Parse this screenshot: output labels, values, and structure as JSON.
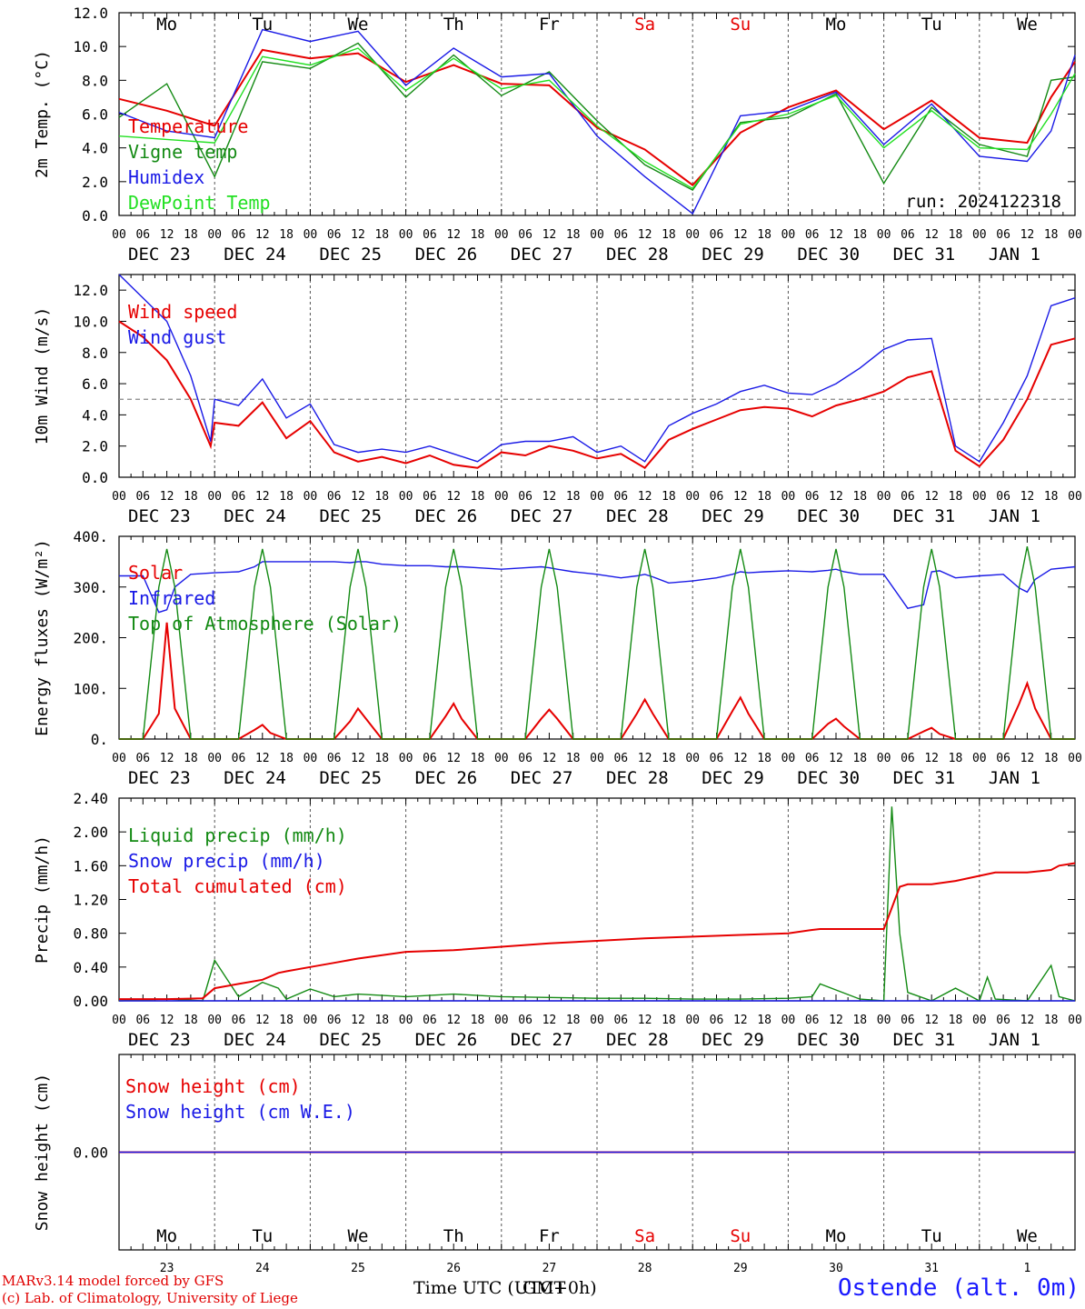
{
  "colors": {
    "red": "#e60000",
    "green": "#138a13",
    "blue": "#1a1ae6",
    "lightgreen": "#22e022",
    "grid": "#555555",
    "weekend": "#e60000"
  },
  "days": {
    "weekdays": [
      "Mo",
      "Tu",
      "We",
      "Th",
      "Fr",
      "Sa",
      "Su",
      "Mo",
      "Tu",
      "We"
    ],
    "weekend_index": [
      5,
      6
    ],
    "dates": [
      "DEC 23",
      "DEC 24",
      "DEC 25",
      "DEC 26",
      "DEC 27",
      "DEC 28",
      "DEC 29",
      "DEC 30",
      "DEC 31",
      "JAN  1"
    ],
    "day_numbers": [
      "23",
      "24",
      "25",
      "26",
      "27",
      "28",
      "29",
      "30",
      "31",
      "1"
    ],
    "hour_ticks": [
      "00",
      "06",
      "12",
      "18"
    ],
    "final_tick": "00"
  },
  "run_label": "run: 2024122318",
  "footer": {
    "credit_line1": "MARv3.14 model forced by GFS",
    "credit_line2": "(c) Lab. of Climatology, University of Liege",
    "xlabel": "Time UTC (UTC+0h)",
    "xlabel_overlay": "GMT",
    "station": "Ostende (alt. 0m)"
  },
  "chart_data": [
    {
      "type": "line",
      "ylabel": "2m Temp. (°C)",
      "ylim": [
        0,
        12
      ],
      "yticks": [
        "0.0",
        "2.0",
        "4.0",
        "6.0",
        "8.0",
        "10.0",
        "12.0"
      ],
      "yticks_values": [
        0,
        2,
        4,
        6,
        8,
        10,
        12
      ],
      "x_hours": [
        0,
        12,
        24,
        36,
        48,
        60,
        72,
        84,
        96,
        108,
        120,
        132,
        144,
        156,
        168,
        180,
        192,
        204,
        216,
        228,
        234,
        240
      ],
      "series": [
        {
          "name": "Temperature",
          "color": "red",
          "values": [
            6.9,
            6.2,
            5.3,
            9.8,
            9.3,
            9.6,
            7.9,
            8.9,
            7.8,
            7.7,
            5.2,
            3.9,
            1.8,
            4.9,
            6.4,
            7.4,
            5.1,
            6.8,
            4.6,
            4.3,
            7.0,
            9.1
          ]
        },
        {
          "name": "Vigne temp",
          "color": "green",
          "values": [
            5.8,
            7.8,
            2.3,
            9.1,
            8.7,
            10.2,
            7.0,
            9.5,
            7.1,
            8.5,
            5.6,
            3.0,
            1.5,
            5.5,
            5.8,
            7.2,
            1.9,
            6.4,
            4.2,
            3.5,
            8.0,
            8.2
          ]
        },
        {
          "name": "Humidex",
          "color": "blue",
          "values": [
            6.1,
            5.0,
            4.6,
            11.0,
            10.3,
            10.9,
            7.7,
            9.9,
            8.2,
            8.4,
            4.7,
            2.3,
            0.1,
            5.9,
            6.2,
            7.3,
            4.2,
            6.6,
            3.5,
            3.2,
            5.0,
            9.5
          ]
        },
        {
          "name": "DewPoint Temp",
          "color": "lightgreen",
          "values": [
            4.7,
            4.5,
            4.3,
            9.4,
            8.9,
            9.9,
            7.4,
            9.3,
            7.5,
            8.0,
            5.3,
            3.2,
            1.6,
            5.4,
            6.0,
            7.1,
            4.0,
            6.2,
            4.0,
            3.9,
            6.0,
            8.4
          ]
        }
      ]
    },
    {
      "type": "line",
      "ylabel": "10m Wind (m/s)",
      "ylim": [
        0,
        13
      ],
      "yticks": [
        "0.0",
        "2.0",
        "4.0",
        "6.0",
        "8.0",
        "10.0",
        "12.0"
      ],
      "yticks_values": [
        0,
        2,
        4,
        6,
        8,
        10,
        12
      ],
      "reference_line": 5,
      "x_hours": [
        0,
        6,
        12,
        18,
        23,
        24,
        30,
        36,
        42,
        48,
        54,
        60,
        66,
        72,
        78,
        84,
        90,
        96,
        102,
        108,
        114,
        120,
        126,
        132,
        138,
        144,
        150,
        156,
        162,
        168,
        174,
        180,
        186,
        192,
        198,
        204,
        210,
        216,
        222,
        228,
        234,
        240
      ],
      "series": [
        {
          "name": "Wind speed",
          "color": "red",
          "values": [
            10.0,
            9.0,
            7.5,
            5.0,
            2.0,
            3.5,
            3.3,
            4.8,
            2.5,
            3.6,
            1.6,
            1.0,
            1.3,
            0.9,
            1.4,
            0.8,
            0.6,
            1.6,
            1.4,
            2.0,
            1.7,
            1.2,
            1.5,
            0.6,
            2.4,
            3.1,
            3.7,
            4.3,
            4.5,
            4.4,
            3.9,
            4.6,
            5.0,
            5.5,
            6.4,
            6.8,
            1.7,
            0.7,
            2.4,
            5.0,
            8.5,
            8.9
          ]
        },
        {
          "name": "Wind gust",
          "color": "blue",
          "values": [
            13.0,
            11.5,
            10.0,
            6.5,
            2.3,
            5.0,
            4.6,
            6.3,
            3.8,
            4.7,
            2.1,
            1.6,
            1.8,
            1.6,
            2.0,
            1.5,
            1.0,
            2.1,
            2.3,
            2.3,
            2.6,
            1.6,
            2.0,
            1.0,
            3.3,
            4.1,
            4.7,
            5.5,
            5.9,
            5.4,
            5.3,
            6.0,
            7.0,
            8.2,
            8.8,
            8.9,
            2.0,
            1.0,
            3.5,
            6.5,
            11.0,
            11.5
          ]
        }
      ]
    },
    {
      "type": "line",
      "ylabel": "Energy fluxes (W/m²)",
      "ylim": [
        0,
        400
      ],
      "yticks": [
        "0.",
        "100.",
        "200.",
        "300.",
        "400."
      ],
      "yticks_values": [
        0,
        100,
        200,
        300,
        400
      ],
      "x_hours": [
        0,
        6,
        10,
        12,
        14,
        18,
        24,
        30,
        34,
        36,
        38,
        42,
        48,
        54,
        58,
        60,
        62,
        66,
        72,
        78,
        82,
        84,
        86,
        90,
        96,
        102,
        106,
        108,
        110,
        114,
        120,
        126,
        130,
        132,
        134,
        138,
        144,
        150,
        154,
        156,
        158,
        162,
        168,
        174,
        178,
        180,
        182,
        186,
        192,
        198,
        202,
        204,
        206,
        210,
        216,
        222,
        226,
        228,
        230,
        234,
        240
      ],
      "series": [
        {
          "name": "Solar",
          "color": "red",
          "values": [
            0,
            0,
            50,
            230,
            60,
            0,
            0,
            0,
            18,
            28,
            12,
            0,
            0,
            0,
            35,
            60,
            40,
            0,
            0,
            0,
            45,
            70,
            40,
            0,
            0,
            0,
            40,
            58,
            40,
            0,
            0,
            0,
            50,
            78,
            50,
            0,
            0,
            0,
            55,
            82,
            50,
            0,
            0,
            0,
            30,
            40,
            25,
            0,
            0,
            0,
            15,
            22,
            10,
            0,
            0,
            0,
            70,
            110,
            60,
            0,
            0
          ]
        },
        {
          "name": "Infrared",
          "color": "blue",
          "values": [
            322,
            322,
            250,
            255,
            300,
            325,
            328,
            330,
            340,
            350,
            350,
            350,
            350,
            350,
            348,
            350,
            350,
            345,
            342,
            342,
            340,
            340,
            340,
            338,
            335,
            338,
            340,
            338,
            335,
            330,
            325,
            318,
            322,
            325,
            320,
            308,
            312,
            318,
            325,
            330,
            328,
            330,
            332,
            330,
            333,
            335,
            330,
            325,
            325,
            258,
            265,
            330,
            332,
            318,
            322,
            325,
            298,
            290,
            315,
            335,
            340
          ]
        },
        {
          "name": "Top of Atmosphere (Solar)",
          "color": "green",
          "values": [
            0,
            0,
            300,
            375,
            300,
            0,
            0,
            0,
            300,
            375,
            300,
            0,
            0,
            0,
            300,
            375,
            300,
            0,
            0,
            0,
            300,
            375,
            300,
            0,
            0,
            0,
            300,
            375,
            300,
            0,
            0,
            0,
            300,
            375,
            300,
            0,
            0,
            0,
            300,
            375,
            300,
            0,
            0,
            0,
            300,
            375,
            300,
            0,
            0,
            0,
            300,
            375,
            300,
            0,
            0,
            0,
            300,
            380,
            300,
            0,
            0
          ]
        }
      ]
    },
    {
      "type": "line",
      "ylabel": "Precip (mm/h)",
      "ylim": [
        0,
        2.4
      ],
      "yticks": [
        "0.00",
        "0.40",
        "0.80",
        "1.20",
        "1.60",
        "2.00",
        "2.40"
      ],
      "yticks_values": [
        0,
        0.4,
        0.8,
        1.2,
        1.6,
        2.0,
        2.4
      ],
      "x_hours": [
        0,
        12,
        21,
        24,
        30,
        36,
        40,
        42,
        48,
        54,
        60,
        72,
        84,
        96,
        108,
        120,
        132,
        144,
        156,
        168,
        174,
        176,
        186,
        192,
        194,
        196,
        198,
        204,
        210,
        216,
        218,
        220,
        228,
        234,
        236,
        240
      ],
      "series": [
        {
          "name": "Liquid precip (mm/h)",
          "color": "green",
          "values": [
            0,
            0.02,
            0,
            0.48,
            0.05,
            0.22,
            0.15,
            0.02,
            0.14,
            0.05,
            0.08,
            0.05,
            0.08,
            0.05,
            0.04,
            0.03,
            0.03,
            0.02,
            0.02,
            0.03,
            0.05,
            0.2,
            0.02,
            0,
            2.3,
            0.8,
            0.1,
            0,
            0.15,
            0,
            0.28,
            0.02,
            0,
            0.42,
            0.05,
            0
          ]
        },
        {
          "name": "Snow precip (mm/h)",
          "color": "blue",
          "values": [
            0,
            0,
            0,
            0,
            0,
            0,
            0,
            0,
            0,
            0,
            0,
            0,
            0,
            0,
            0,
            0,
            0,
            0,
            0,
            0,
            0,
            0,
            0,
            0,
            0,
            0,
            0,
            0,
            0,
            0,
            0,
            0,
            0,
            0,
            0,
            0
          ]
        },
        {
          "name": "Total cumulated (cm)",
          "color": "red",
          "values": [
            0.02,
            0.02,
            0.03,
            0.15,
            0.2,
            0.25,
            0.33,
            0.35,
            0.4,
            0.45,
            0.5,
            0.58,
            0.6,
            0.64,
            0.68,
            0.71,
            0.74,
            0.76,
            0.78,
            0.8,
            0.84,
            0.85,
            0.85,
            0.85,
            1.1,
            1.35,
            1.38,
            1.38,
            1.42,
            1.48,
            1.5,
            1.52,
            1.52,
            1.55,
            1.6,
            1.63
          ]
        }
      ]
    },
    {
      "type": "line",
      "ylabel": "Snow height (cm)",
      "yticks": [
        "0.00"
      ],
      "yticks_values": [
        0
      ],
      "ylim": [
        -1,
        1
      ],
      "x_hours": [
        0,
        240
      ],
      "series": [
        {
          "name": "Snow height (cm)",
          "color": "red",
          "values": [
            0,
            0
          ]
        },
        {
          "name": "Snow height (cm W.E.)",
          "color": "blue",
          "values": [
            0,
            0
          ]
        }
      ]
    }
  ]
}
